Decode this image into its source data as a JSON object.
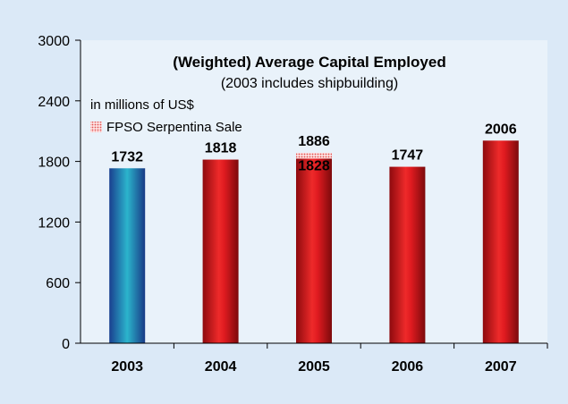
{
  "chart_data": {
    "type": "bar",
    "title": "(Weighted) Average Capital Employed",
    "subtitle": "(2003 includes shipbuilding)",
    "unit_note": "in millions of US$",
    "categories": [
      "2003",
      "2004",
      "2005",
      "2006",
      "2007"
    ],
    "series": [
      {
        "values": [
          1732,
          1818,
          1828,
          1747,
          2006
        ]
      },
      {
        "name": "FPSO Serpentina Sale",
        "values": [
          0,
          0,
          58,
          0,
          0
        ]
      }
    ],
    "labels": [
      "1732",
      "1818",
      "1886",
      "1747",
      "2006"
    ],
    "inner_labels": [
      "",
      "",
      "1828",
      "",
      ""
    ],
    "ylim": [
      0,
      3000
    ],
    "yticks": [
      "0",
      "600",
      "1200",
      "1800",
      "2400",
      "3000"
    ],
    "legend_placement": "top-left",
    "grid": false,
    "colors": {
      "first_bar": "#1f7fbf",
      "bars": "#d8141b",
      "sale_pattern": "#f28a8a"
    }
  }
}
